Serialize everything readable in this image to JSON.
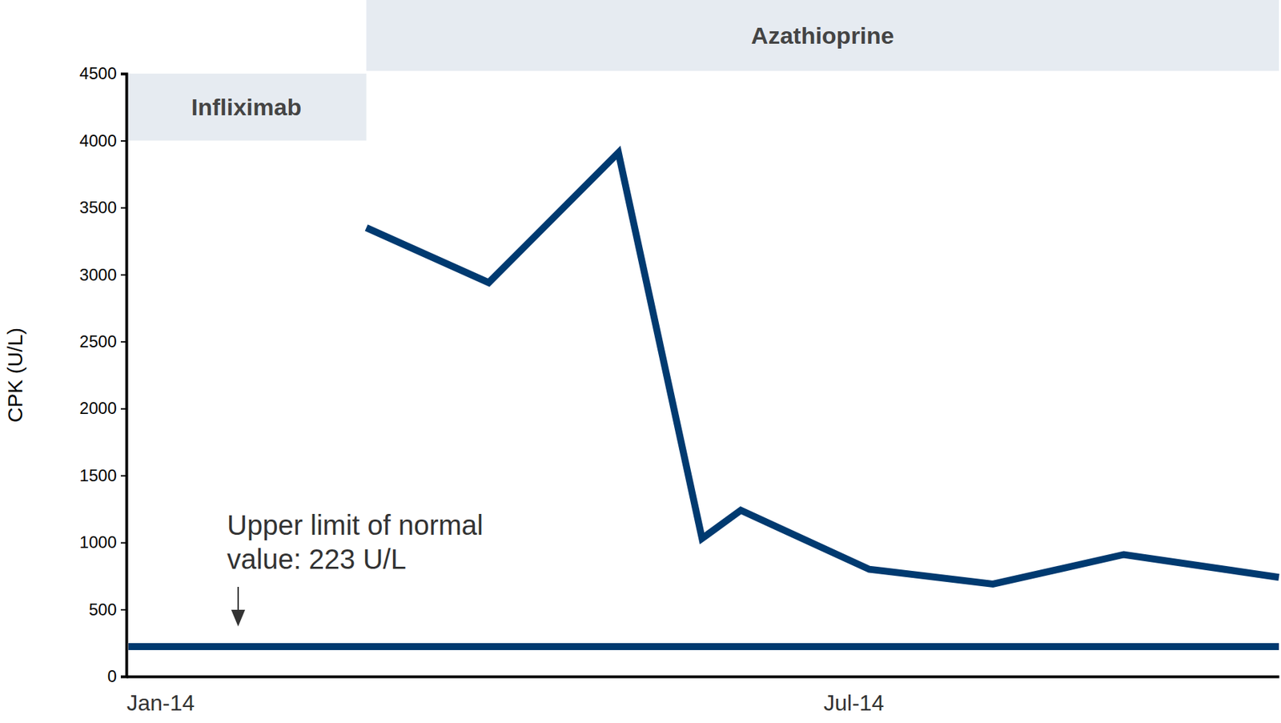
{
  "chart_data": {
    "type": "line",
    "ylabel": "CPK (U/L)",
    "x": [
      1.98,
      2.99,
      4.06,
      4.75,
      5.07,
      6.13,
      7.15,
      8.23,
      9.51
    ],
    "values": [
      3350,
      2940,
      3910,
      1030,
      1240,
      800,
      690,
      910,
      740
    ],
    "color": "#003a70",
    "xlim": [
      0,
      9.51
    ],
    "xticks": [
      {
        "value": 0,
        "label": "Jan-14"
      },
      {
        "value": 6,
        "label": "Jul-14"
      }
    ],
    "ylim": [
      0,
      4500
    ],
    "yticks": [
      0,
      500,
      1000,
      1500,
      2000,
      2500,
      3000,
      3500,
      4000,
      4500
    ],
    "reference_line": {
      "value": 223,
      "label": [
        "Upper limit of normal",
        "value: 223 U/L"
      ]
    },
    "bands": [
      {
        "label": "Infliximab",
        "x": [
          0,
          1.98
        ]
      },
      {
        "label": "Azathioprine",
        "x": [
          1.98,
          9.51
        ]
      }
    ],
    "grid": false
  }
}
